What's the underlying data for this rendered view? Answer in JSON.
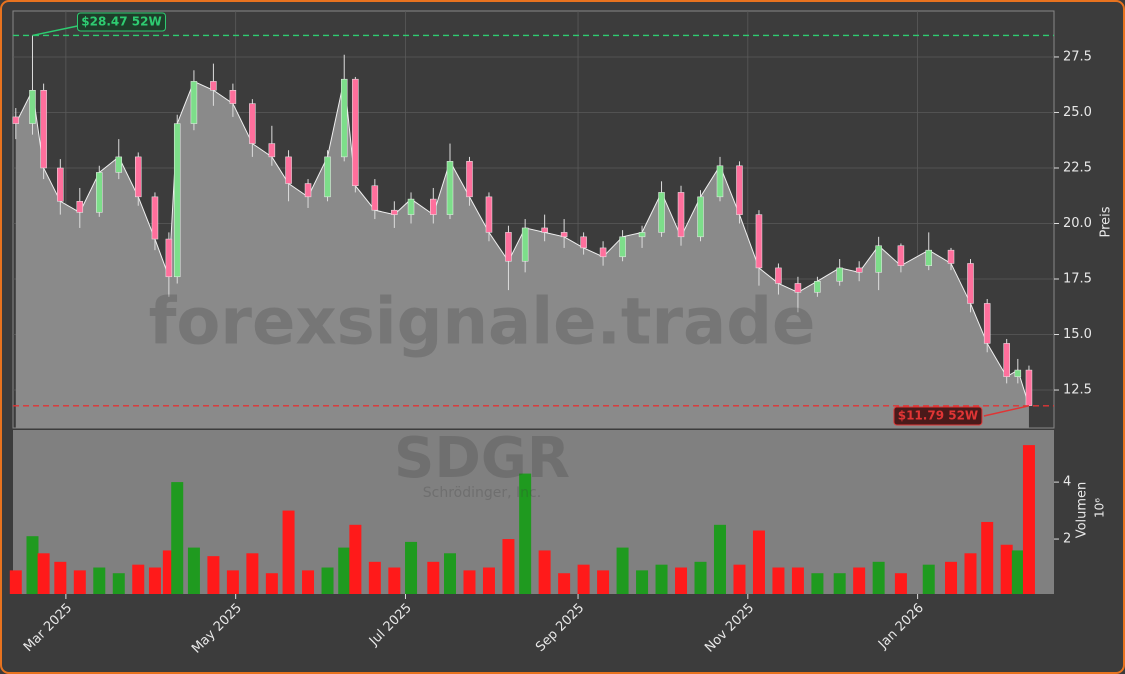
{
  "chart_data": {
    "type": "candlestick",
    "watermark": "forexsignale.trade",
    "symbol": "SDGR",
    "company": "Schrödinger, Inc.",
    "ylabel": "Preis",
    "x": [
      "2025-02-11",
      "2025-02-17",
      "2025-02-21",
      "2025-02-27",
      "2025-03-06",
      "2025-03-13",
      "2025-03-20",
      "2025-03-27",
      "2025-04-02",
      "2025-04-07",
      "2025-04-10",
      "2025-04-16",
      "2025-04-23",
      "2025-04-30",
      "2025-05-07",
      "2025-05-14",
      "2025-05-20",
      "2025-05-27",
      "2025-06-03",
      "2025-06-09",
      "2025-06-13",
      "2025-06-20",
      "2025-06-27",
      "2025-07-03",
      "2025-07-11",
      "2025-07-17",
      "2025-07-24",
      "2025-07-31",
      "2025-08-07",
      "2025-08-13",
      "2025-08-20",
      "2025-08-27",
      "2025-09-03",
      "2025-09-10",
      "2025-09-17",
      "2025-09-24",
      "2025-10-01",
      "2025-10-08",
      "2025-10-15",
      "2025-10-22",
      "2025-10-29",
      "2025-11-05",
      "2025-11-12",
      "2025-11-19",
      "2025-11-26",
      "2025-12-04",
      "2025-12-11",
      "2025-12-18",
      "2025-12-26",
      "2026-01-05",
      "2026-01-13",
      "2026-01-20",
      "2026-01-26",
      "2026-02-02",
      "2026-02-06",
      "2026-02-10"
    ],
    "open": [
      24.8,
      24.5,
      26.0,
      22.5,
      21.0,
      20.5,
      22.3,
      23.0,
      21.2,
      19.3,
      17.6,
      24.5,
      26.4,
      26.0,
      25.4,
      23.6,
      23.0,
      21.8,
      21.2,
      23.0,
      26.5,
      21.7,
      20.6,
      20.4,
      21.1,
      20.4,
      22.8,
      21.2,
      19.6,
      18.3,
      19.8,
      19.6,
      19.4,
      18.9,
      18.5,
      19.4,
      19.6,
      21.4,
      19.4,
      21.2,
      22.6,
      20.4,
      18.0,
      17.3,
      16.9,
      17.4,
      18.0,
      17.8,
      19.0,
      18.1,
      18.8,
      18.2,
      16.4,
      14.6,
      13.1,
      13.4
    ],
    "high": [
      25.2,
      28.47,
      26.3,
      22.9,
      21.6,
      22.6,
      23.8,
      23.2,
      21.4,
      19.6,
      24.9,
      26.9,
      27.2,
      26.3,
      25.6,
      24.4,
      23.3,
      22.0,
      23.3,
      27.6,
      26.6,
      22.0,
      21.0,
      21.4,
      21.6,
      23.6,
      23.0,
      21.4,
      19.9,
      20.2,
      20.4,
      20.2,
      19.6,
      19.2,
      19.7,
      19.9,
      21.9,
      21.7,
      21.5,
      23.0,
      22.8,
      20.6,
      18.2,
      17.6,
      17.6,
      18.4,
      18.3,
      19.4,
      19.1,
      19.6,
      18.9,
      18.4,
      16.6,
      14.8,
      13.9,
      13.6
    ],
    "low": [
      23.8,
      24.0,
      22.0,
      20.4,
      19.8,
      20.3,
      22.0,
      20.8,
      18.8,
      16.7,
      17.3,
      24.2,
      25.3,
      24.8,
      23.0,
      22.6,
      21.0,
      20.7,
      21.0,
      22.8,
      21.4,
      20.2,
      19.8,
      20.0,
      20.0,
      20.2,
      20.8,
      19.2,
      17.0,
      17.8,
      19.2,
      18.9,
      18.6,
      18.1,
      18.3,
      18.9,
      19.4,
      19.0,
      19.2,
      21.0,
      20.0,
      17.2,
      16.8,
      16.0,
      16.7,
      17.2,
      17.4,
      17.0,
      17.8,
      17.9,
      17.9,
      16.0,
      14.2,
      12.8,
      12.8,
      11.79
    ],
    "close": [
      24.5,
      26.0,
      22.5,
      21.0,
      20.5,
      22.3,
      23.0,
      21.2,
      19.3,
      17.6,
      24.5,
      26.4,
      26.0,
      25.4,
      23.6,
      23.0,
      21.8,
      21.2,
      23.0,
      26.5,
      21.7,
      20.6,
      20.4,
      21.1,
      20.4,
      22.8,
      21.2,
      19.6,
      18.3,
      19.8,
      19.6,
      19.4,
      18.9,
      18.5,
      19.4,
      19.6,
      21.4,
      19.4,
      21.2,
      22.6,
      20.4,
      18.0,
      17.3,
      16.9,
      17.4,
      18.0,
      17.8,
      19.0,
      18.1,
      18.8,
      18.2,
      16.4,
      14.6,
      13.1,
      13.4,
      11.8
    ],
    "up_color": "#7dde8a",
    "down_color": "#ff6f9c",
    "ylim": [
      10.79,
      29.57
    ],
    "yticks": [
      12.5,
      {
        "value": 15,
        "label": "15.0"
      },
      17.5,
      {
        "value": 20,
        "label": "20.0"
      },
      22.5,
      {
        "value": 25,
        "label": "25.0"
      },
      27.5
    ],
    "xlim": [
      "2025-02-10",
      "2026-02-19"
    ],
    "xticks": [
      {
        "value": "2025-03-01",
        "label": "Mar 2025"
      },
      {
        "value": "2025-05-01",
        "label": "May 2025"
      },
      {
        "value": "2025-07-01",
        "label": "Jul 2025"
      },
      {
        "value": "2025-09-01",
        "label": "Sep 2025"
      },
      {
        "value": "2025-11-01",
        "label": "Nov 2025"
      },
      {
        "value": "2026-01-01",
        "label": "Jan 2026"
      }
    ],
    "grid": true,
    "annotations": [
      {
        "label": "$28.47 52W",
        "value": 28.47,
        "color": "#2ecc71"
      },
      {
        "label": "$11.79 52W",
        "value": 11.79,
        "color": "#e03535"
      }
    ],
    "volume": {
      "ylabel": "Volumen",
      "scale_label": "10⁶",
      "values": [
        0.9,
        2.1,
        1.5,
        1.2,
        0.9,
        1.0,
        0.8,
        1.1,
        1.0,
        1.6,
        4.0,
        1.7,
        1.4,
        0.9,
        1.5,
        0.8,
        3.0,
        0.9,
        1.0,
        1.7,
        2.5,
        1.2,
        1.0,
        1.9,
        1.2,
        1.5,
        0.9,
        1.0,
        2.0,
        4.3,
        1.6,
        0.8,
        1.1,
        0.9,
        1.7,
        0.9,
        1.1,
        1.0,
        1.2,
        2.5,
        1.1,
        2.3,
        1.0,
        1.0,
        0.8,
        0.8,
        1.0,
        1.2,
        0.8,
        1.1,
        1.2,
        1.5,
        2.6,
        1.8,
        1.6,
        5.3
      ],
      "up_color": "#1f9a1f",
      "down_color": "#ff1a1a",
      "ylim": [
        0.07,
        5.83
      ],
      "yticks": [
        2,
        4
      ]
    }
  }
}
